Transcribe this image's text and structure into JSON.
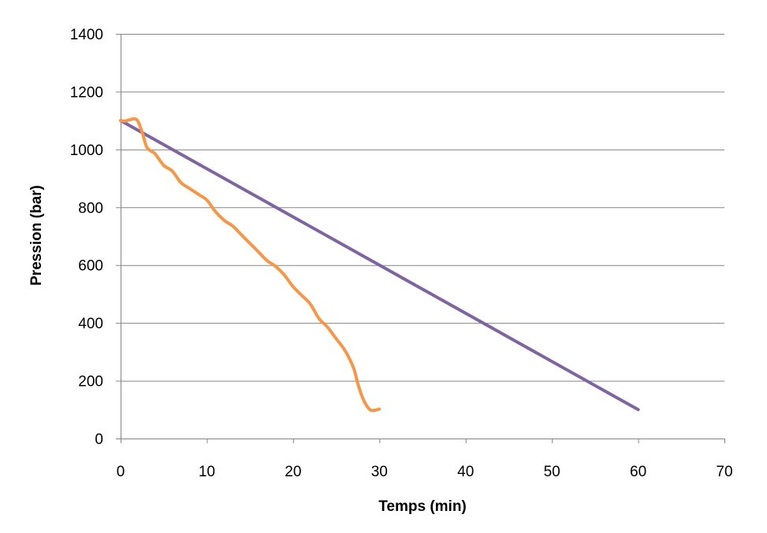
{
  "chart_data": {
    "type": "line",
    "title": "",
    "xlabel": "Temps (min)",
    "ylabel": "Pression (bar)",
    "xlim": [
      0,
      70
    ],
    "ylim": [
      0,
      1400
    ],
    "x_ticks": [
      0,
      10,
      20,
      30,
      40,
      50,
      60,
      70
    ],
    "y_ticks": [
      0,
      200,
      400,
      600,
      800,
      1000,
      1200,
      1400
    ],
    "grid": "horizontal",
    "legend": "none",
    "series": [
      {
        "color": "#8064A2",
        "points": [
          [
            0,
            1100
          ],
          [
            60,
            100
          ]
        ]
      },
      {
        "color": "#F79646",
        "points": [
          [
            0,
            1100
          ],
          [
            0.5,
            1098
          ],
          [
            1,
            1102
          ],
          [
            1.6,
            1106
          ],
          [
            2,
            1098
          ],
          [
            2.5,
            1060
          ],
          [
            3,
            1010
          ],
          [
            3.5,
            995
          ],
          [
            4,
            985
          ],
          [
            5,
            945
          ],
          [
            6,
            925
          ],
          [
            7,
            885
          ],
          [
            8,
            865
          ],
          [
            9,
            845
          ],
          [
            10,
            825
          ],
          [
            11,
            785
          ],
          [
            12,
            755
          ],
          [
            13,
            735
          ],
          [
            14,
            705
          ],
          [
            15,
            675
          ],
          [
            16,
            645
          ],
          [
            17,
            615
          ],
          [
            18,
            595
          ],
          [
            19,
            565
          ],
          [
            20,
            525
          ],
          [
            21,
            495
          ],
          [
            22,
            465
          ],
          [
            23,
            415
          ],
          [
            24,
            385
          ],
          [
            25,
            345
          ],
          [
            26,
            305
          ],
          [
            27,
            245
          ],
          [
            27.5,
            190
          ],
          [
            28,
            145
          ],
          [
            28.5,
            115
          ],
          [
            29,
            98
          ],
          [
            29.5,
            98
          ],
          [
            30,
            102
          ]
        ]
      }
    ]
  }
}
